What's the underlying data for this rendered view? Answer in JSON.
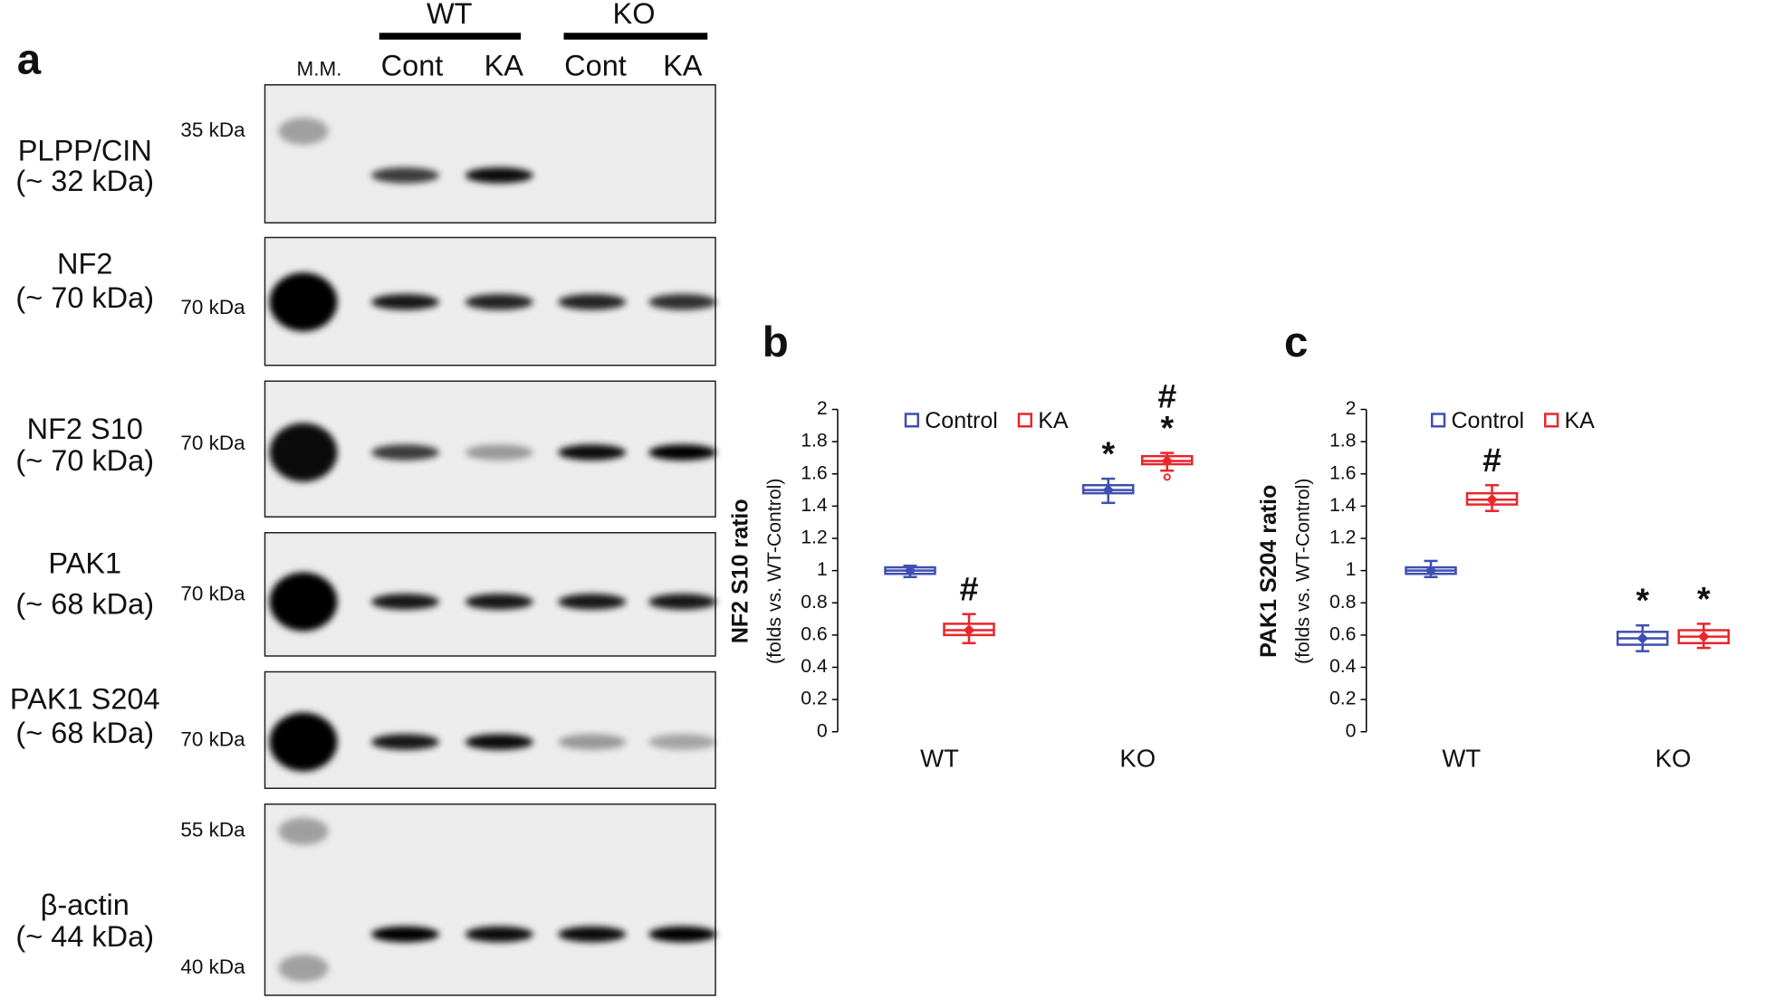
{
  "blot": {
    "panel_label": "a",
    "marker_label": "M.M.",
    "groups": [
      {
        "label": "WT",
        "lanes": [
          "Cont",
          "KA"
        ]
      },
      {
        "label": "KO",
        "lanes": [
          "Cont",
          "KA"
        ]
      }
    ],
    "rows": [
      {
        "protein": "PLPP/CIN",
        "size": "(~ 32 kDa)",
        "markers": [
          "35 kDa"
        ]
      },
      {
        "protein": "NF2",
        "size": "(~ 70 kDa)",
        "markers": [
          "70 kDa"
        ]
      },
      {
        "protein": "NF2 S10",
        "size": "(~ 70 kDa)",
        "markers": [
          "70 kDa"
        ]
      },
      {
        "protein": "PAK1",
        "size": "(~ 68 kDa)",
        "markers": [
          "70 kDa"
        ]
      },
      {
        "protein": "PAK1 S204",
        "size": "(~ 68 kDa)",
        "markers": [
          "70 kDa"
        ]
      },
      {
        "protein": "β-actin",
        "size": "(~ 44 kDa)",
        "markers": [
          "55 kDa",
          "40 kDa"
        ]
      }
    ]
  },
  "chart_data": [
    {
      "type": "box",
      "panel_label": "b",
      "ylabel": "NF2 S10 ratio",
      "ysublabel": "(folds vs. WT-Control)",
      "categories": [
        "WT",
        "KO"
      ],
      "ylim": [
        0,
        2
      ],
      "yticks": [
        0,
        0.2,
        0.4,
        0.6,
        0.8,
        1,
        1.2,
        1.4,
        1.6,
        1.8,
        2
      ],
      "series": [
        {
          "name": "Control",
          "color": "#3f4fb0",
          "values": [
            {
              "min": 0.96,
              "q1": 0.98,
              "median": 1.0,
              "q3": 1.02,
              "max": 1.03
            },
            {
              "min": 1.42,
              "q1": 1.48,
              "median": 1.5,
              "q3": 1.53,
              "max": 1.57
            }
          ],
          "annotations": [
            null,
            [
              "*"
            ]
          ]
        },
        {
          "name": "KA",
          "color": "#e8262c",
          "values": [
            {
              "min": 0.55,
              "q1": 0.6,
              "median": 0.63,
              "q3": 0.67,
              "max": 0.73
            },
            {
              "min": 1.62,
              "q1": 1.66,
              "median": 1.68,
              "q3": 1.71,
              "max": 1.73,
              "outliers": [
                1.58
              ]
            }
          ],
          "annotations": [
            [
              "#"
            ],
            [
              "#",
              "*"
            ]
          ]
        }
      ]
    },
    {
      "type": "box",
      "panel_label": "c",
      "ylabel": "PAK1 S204 ratio",
      "ysublabel": "(folds vs. WT-Control)",
      "categories": [
        "WT",
        "KO"
      ],
      "ylim": [
        0,
        2
      ],
      "yticks": [
        0,
        0.2,
        0.4,
        0.6,
        0.8,
        1,
        1.2,
        1.4,
        1.6,
        1.8,
        2
      ],
      "series": [
        {
          "name": "Control",
          "color": "#3f4fb0",
          "values": [
            {
              "min": 0.96,
              "q1": 0.98,
              "median": 1.0,
              "q3": 1.02,
              "max": 1.06
            },
            {
              "min": 0.5,
              "q1": 0.54,
              "median": 0.58,
              "q3": 0.62,
              "max": 0.66
            }
          ],
          "annotations": [
            null,
            [
              "*"
            ]
          ]
        },
        {
          "name": "KA",
          "color": "#e8262c",
          "values": [
            {
              "min": 1.37,
              "q1": 1.41,
              "median": 1.44,
              "q3": 1.48,
              "max": 1.53
            },
            {
              "min": 0.52,
              "q1": 0.55,
              "median": 0.59,
              "q3": 0.63,
              "max": 0.67
            }
          ],
          "annotations": [
            [
              "#"
            ],
            [
              "*"
            ]
          ]
        }
      ]
    }
  ]
}
